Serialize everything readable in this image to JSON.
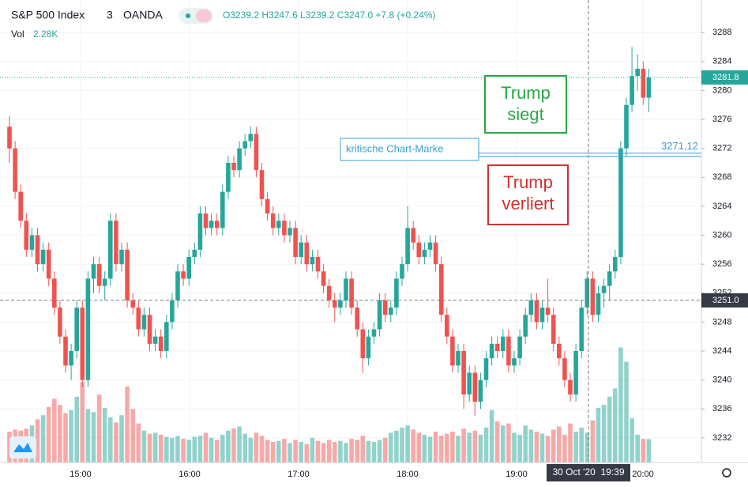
{
  "chart_data": {
    "type": "candlestick",
    "title": "S&P 500 Index",
    "interval": "3",
    "source": "OANDA",
    "ohlc_text": "O3239.2 H3247.6 L3239.2 C3247.0 +7.8 (+0.24%)",
    "volume_title": "Vol",
    "volume_text": "2.28K",
    "up_color": "#26a69a",
    "down_color": "#ef5350",
    "ylim": [
      3228.6,
      3292.5
    ],
    "yticks": [
      3232,
      3236,
      3240,
      3244,
      3248,
      3252,
      3256,
      3260,
      3264,
      3268,
      3272,
      3276,
      3280,
      3284,
      3288
    ],
    "grid": true,
    "time_labels": [
      "15:00",
      "16:00",
      "17:00",
      "18:00",
      "19:00",
      "20:00"
    ],
    "crosshair_label": "30 Oct '20  19:39",
    "last_price": 3281.8,
    "level_price": {
      "value": 3251,
      "label": "3251.0"
    },
    "marker_line": {
      "text": "kritische Chart-Marke",
      "price": {
        "value": 3271.12,
        "label": "3271,12"
      }
    },
    "annotations": [
      {
        "text": [
          "Trump",
          "siegt"
        ],
        "color": "#27a844"
      },
      {
        "text": [
          "Trump",
          "verliert"
        ],
        "color": "#d32f2f"
      }
    ],
    "candles": [
      [
        3275,
        3276.5,
        3270,
        3272
      ],
      [
        3272,
        3273,
        3265,
        3266
      ],
      [
        3266,
        3267,
        3261,
        3262
      ],
      [
        3262,
        3263,
        3257,
        3258
      ],
      [
        3258,
        3261,
        3257,
        3260
      ],
      [
        3260,
        3261,
        3255,
        3256
      ],
      [
        3256,
        3259,
        3255,
        3258
      ],
      [
        3258,
        3259,
        3253,
        3254
      ],
      [
        3254,
        3255,
        3249,
        3250
      ],
      [
        3250,
        3251,
        3245,
        3246
      ],
      [
        3246,
        3247,
        3241,
        3242
      ],
      [
        3242,
        3245,
        3240,
        3244
      ],
      [
        3244,
        3251,
        3243,
        3250
      ],
      [
        3250,
        3251,
        3239,
        3240
      ],
      [
        3240,
        3255,
        3239,
        3254
      ],
      [
        3254,
        3257,
        3252,
        3256
      ],
      [
        3256,
        3257,
        3252,
        3253
      ],
      [
        3253,
        3255,
        3251,
        3254
      ],
      [
        3254,
        3263,
        3253,
        3262
      ],
      [
        3262,
        3263,
        3255,
        3256
      ],
      [
        3256,
        3259,
        3255,
        3258
      ],
      [
        3258,
        3259,
        3250,
        3251
      ],
      [
        3251,
        3252,
        3249,
        3250
      ],
      [
        3250,
        3251,
        3246,
        3247
      ],
      [
        3247,
        3250,
        3246,
        3249
      ],
      [
        3249,
        3250,
        3244,
        3245
      ],
      [
        3245,
        3247,
        3244,
        3246
      ],
      [
        3246,
        3247,
        3243,
        3244
      ],
      [
        3244,
        3249,
        3243,
        3248
      ],
      [
        3248,
        3252,
        3247,
        3251
      ],
      [
        3251,
        3256,
        3250,
        3255
      ],
      [
        3255,
        3256,
        3253,
        3254
      ],
      [
        3254,
        3258,
        3253,
        3257
      ],
      [
        3257,
        3259,
        3256,
        3258
      ],
      [
        3258,
        3264,
        3257,
        3263
      ],
      [
        3263,
        3264,
        3260,
        3261
      ],
      [
        3261,
        3263,
        3260,
        3262
      ],
      [
        3262,
        3263,
        3260,
        3261
      ],
      [
        3261,
        3267,
        3260,
        3266
      ],
      [
        3266,
        3271,
        3265,
        3270
      ],
      [
        3270,
        3271,
        3268,
        3269
      ],
      [
        3269,
        3273,
        3268,
        3272
      ],
      [
        3272,
        3274,
        3271,
        3273
      ],
      [
        3273,
        3275,
        3272,
        3274
      ],
      [
        3274,
        3275,
        3268,
        3269
      ],
      [
        3269,
        3270,
        3264,
        3265
      ],
      [
        3265,
        3266,
        3262,
        3263
      ],
      [
        3263,
        3264,
        3260,
        3261
      ],
      [
        3261,
        3263,
        3260,
        3262
      ],
      [
        3262,
        3263,
        3259,
        3260
      ],
      [
        3260,
        3262,
        3259,
        3261
      ],
      [
        3261,
        3262,
        3256,
        3257
      ],
      [
        3257,
        3260,
        3256,
        3259
      ],
      [
        3259,
        3260,
        3255,
        3256
      ],
      [
        3256,
        3258,
        3255,
        3257
      ],
      [
        3257,
        3258,
        3254,
        3255
      ],
      [
        3255,
        3256,
        3252,
        3253
      ],
      [
        3253,
        3254,
        3250,
        3251
      ],
      [
        3251,
        3252,
        3248,
        3250
      ],
      [
        3250,
        3252,
        3249,
        3251
      ],
      [
        3251,
        3255,
        3250,
        3254
      ],
      [
        3254,
        3255,
        3249,
        3250
      ],
      [
        3250,
        3251,
        3246,
        3247
      ],
      [
        3247,
        3248,
        3241,
        3243
      ],
      [
        3243,
        3247,
        3242,
        3246
      ],
      [
        3246,
        3248,
        3245,
        3247
      ],
      [
        3247,
        3252,
        3246,
        3251
      ],
      [
        3251,
        3252,
        3248,
        3249
      ],
      [
        3249,
        3251,
        3248,
        3250
      ],
      [
        3250,
        3255,
        3249,
        3254
      ],
      [
        3254,
        3257,
        3253,
        3256
      ],
      [
        3256,
        3264,
        3255,
        3261
      ],
      [
        3261,
        3262,
        3258,
        3259
      ],
      [
        3259,
        3260,
        3256,
        3257
      ],
      [
        3257,
        3259,
        3256,
        3258
      ],
      [
        3258,
        3260,
        3257,
        3259
      ],
      [
        3259,
        3260,
        3255,
        3256
      ],
      [
        3256,
        3257,
        3248,
        3249
      ],
      [
        3249,
        3250,
        3245,
        3246
      ],
      [
        3246,
        3247,
        3241,
        3242
      ],
      [
        3242,
        3245,
        3241,
        3244
      ],
      [
        3244,
        3245,
        3236,
        3238
      ],
      [
        3238,
        3242,
        3237,
        3241
      ],
      [
        3241,
        3242,
        3235,
        3237
      ],
      [
        3237,
        3241,
        3236,
        3240
      ],
      [
        3240,
        3244,
        3239,
        3243
      ],
      [
        3243,
        3246,
        3242,
        3245
      ],
      [
        3245,
        3246,
        3243,
        3244
      ],
      [
        3244,
        3247,
        3243,
        3246
      ],
      [
        3246,
        3247,
        3241,
        3242
      ],
      [
        3242,
        3244,
        3241,
        3243
      ],
      [
        3243,
        3247,
        3242,
        3246
      ],
      [
        3246,
        3250,
        3245,
        3249
      ],
      [
        3249,
        3252,
        3248,
        3251
      ],
      [
        3251,
        3252,
        3247,
        3248
      ],
      [
        3248,
        3251,
        3247,
        3250
      ],
      [
        3250,
        3254,
        3248,
        3249
      ],
      [
        3249,
        3250,
        3244,
        3245
      ],
      [
        3245,
        3246,
        3242,
        3243
      ],
      [
        3243,
        3244,
        3239,
        3240
      ],
      [
        3240,
        3241,
        3237,
        3238
      ],
      [
        3238,
        3245,
        3237,
        3244
      ],
      [
        3244,
        3251,
        3243,
        3250
      ],
      [
        3250,
        3255,
        3249,
        3254
      ],
      [
        3254,
        3255,
        3248,
        3249
      ],
      [
        3249,
        3253,
        3248,
        3252
      ],
      [
        3252,
        3254,
        3250,
        3253
      ],
      [
        3253,
        3256,
        3251,
        3255
      ],
      [
        3255,
        3258,
        3254,
        3257
      ],
      [
        3257,
        3273,
        3256,
        3272
      ],
      [
        3272,
        3279,
        3271,
        3278
      ],
      [
        3278,
        3286,
        3277,
        3282
      ],
      [
        3282,
        3285,
        3280,
        3283
      ],
      [
        3283,
        3284,
        3278,
        3279
      ],
      [
        3279,
        3283,
        3277,
        3281.8
      ]
    ],
    "volumes": [
      3,
      3.2,
      3.1,
      3.3,
      3.6,
      4.2,
      4.6,
      5.4,
      6.2,
      5.6,
      4.8,
      5.1,
      6.4,
      7.8,
      5.2,
      4.9,
      6.6,
      5.3,
      4.4,
      3.9,
      4.6,
      7.4,
      5.2,
      3.8,
      3.1,
      2.8,
      2.9,
      2.7,
      2.5,
      2.4,
      2.6,
      2.3,
      2.2,
      2.5,
      2.6,
      2.9,
      2.4,
      2.2,
      2.7,
      3.1,
      3.3,
      3.5,
      2.8,
      2.4,
      2.9,
      2.6,
      2.2,
      2.0,
      2.1,
      2.3,
      1.9,
      2.2,
      2.0,
      1.8,
      2.4,
      2.1,
      1.9,
      2.2,
      2.0,
      2.1,
      1.9,
      2.3,
      2.2,
      2.6,
      2.1,
      2.0,
      2.2,
      2.4,
      2.9,
      3.1,
      3.4,
      3.6,
      3.2,
      2.9,
      2.7,
      2.5,
      3.0,
      2.6,
      2.8,
      3.0,
      2.6,
      3.3,
      2.9,
      3.1,
      2.7,
      3.4,
      5.1,
      4.0,
      3.6,
      3.8,
      2.9,
      2.7,
      3.6,
      3.2,
      3.0,
      2.8,
      2.6,
      3.2,
      3.5,
      2.7,
      3.8,
      3.0,
      3.4,
      2.9,
      4.1,
      5.3,
      5.6,
      6.4,
      7.2,
      11.2,
      9.8,
      4.3,
      2.7,
      2.3,
      2.28
    ]
  }
}
